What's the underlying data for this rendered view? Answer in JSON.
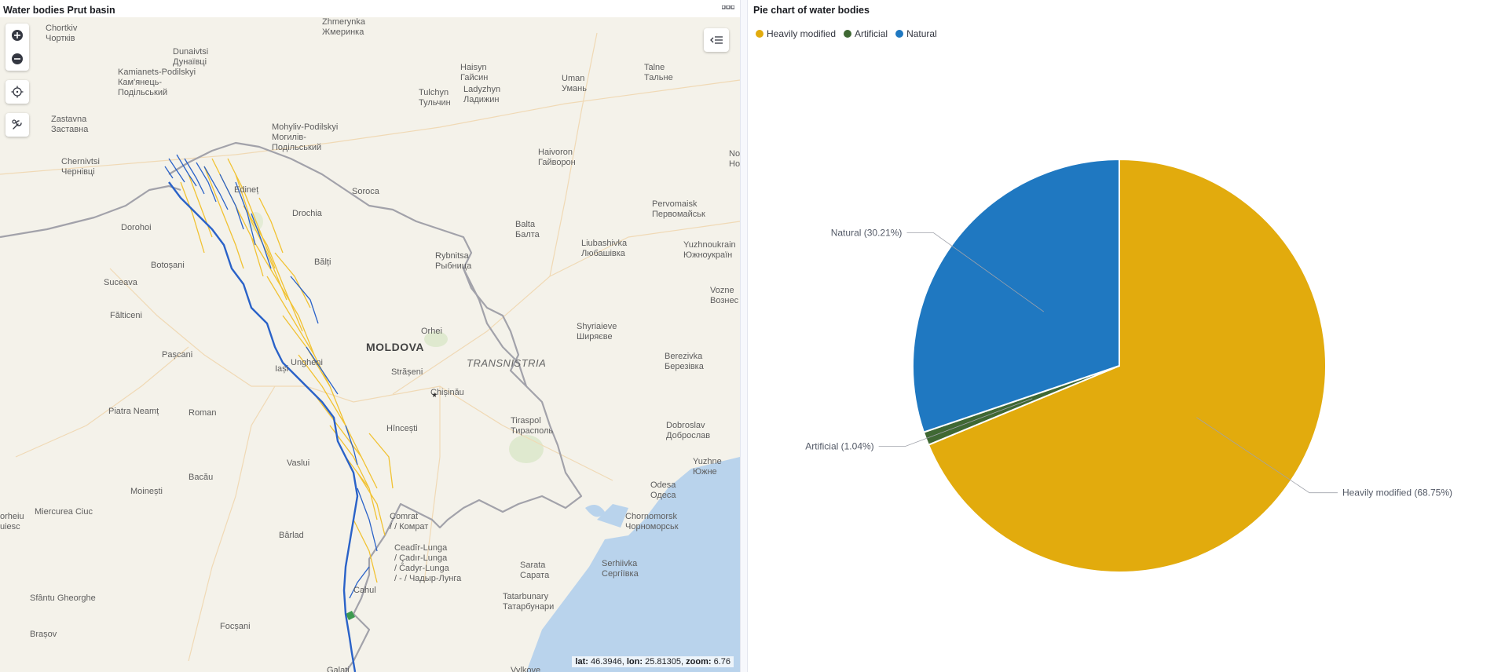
{
  "map_panel": {
    "title": "Water bodies Prut basin",
    "coords": {
      "lat_label": "lat:",
      "lat": "46.3946",
      "lon_label": "lon:",
      "lon": "25.81305",
      "zoom_label": "zoom:",
      "zoom": "6.76"
    },
    "places": [
      {
        "text": "Chortkiv\nЧортків"
      },
      {
        "text": "Zhmerynka\nЖмеринка"
      },
      {
        "text": "Dunaivtsi\nДунаївці"
      },
      {
        "text": "Kamianets-Podilskyi\nКам'янець-\nПодільський"
      },
      {
        "text": "Zastavna\nЗаставна"
      },
      {
        "text": "Mohyliv-Podilskyi\nМогилів-\nПодільський"
      },
      {
        "text": "Haisyn\nГайсин"
      },
      {
        "text": "Talne\nТальне"
      },
      {
        "text": "Uman\nУмань"
      },
      {
        "text": "Tulchyn\nТульчин"
      },
      {
        "text": "Ladyzhyn\nЛадижин"
      },
      {
        "text": "Chernivtsi\nЧернівці"
      },
      {
        "text": "Haivoron\nГайворон"
      },
      {
        "text": "No\nHo"
      },
      {
        "text": "Edineț"
      },
      {
        "text": "Soroca"
      },
      {
        "text": "Pervomaisk\nПервомайськ"
      },
      {
        "text": "Dorohoi"
      },
      {
        "text": "Drochia"
      },
      {
        "text": "Balta\nБалта"
      },
      {
        "text": "Liubashivka\nЛюбашівка"
      },
      {
        "text": "Yuzhnoukrain\nЮжноукраїн"
      },
      {
        "text": "Botoșani"
      },
      {
        "text": "Bălți"
      },
      {
        "text": "Rybnitsa\nРыбница"
      },
      {
        "text": "Suceava"
      },
      {
        "text": "Vozne\nВознес"
      },
      {
        "text": "Fălticeni"
      },
      {
        "text": "Shyriaieve\nШиряєве"
      },
      {
        "text": "Orhei"
      },
      {
        "text": "Pașcani"
      },
      {
        "text": "Ungheni"
      },
      {
        "text": "Berezivka\nБерезівка"
      },
      {
        "text": "Iași"
      },
      {
        "text": "Strășeni"
      },
      {
        "text": "Chișinău"
      },
      {
        "text": "Piatra Neamț"
      },
      {
        "text": "Roman"
      },
      {
        "text": "Tiraspol\nТирасполь"
      },
      {
        "text": "Hîncești"
      },
      {
        "text": "Dobroslav\nДоброслав"
      },
      {
        "text": "Yuzhne\nЮжне"
      },
      {
        "text": "Vaslui"
      },
      {
        "text": "Bacău"
      },
      {
        "text": "Odesa\nОдеса"
      },
      {
        "text": "Moinești"
      },
      {
        "text": "Comrat\n/ / Комрат"
      },
      {
        "text": "Chornomorsk\nЧорноморськ"
      },
      {
        "text": "Miercurea Ciuc"
      },
      {
        "text": "orheiu\nuiesc"
      },
      {
        "text": "Bârlad"
      },
      {
        "text": "Ceadîr-Lunga\n/ Çadır-Lunga\n/ Čadyr-Lunga\n/ - / Чадыр-Лунга"
      },
      {
        "text": "Sarata\nСарата"
      },
      {
        "text": "Serhiivka\nСергіївка"
      },
      {
        "text": "Cahul"
      },
      {
        "text": "Sfântu Gheorghe"
      },
      {
        "text": "Tatarbunary\nТатарбунари"
      },
      {
        "text": "Focșani"
      },
      {
        "text": "Brașov"
      },
      {
        "text": "Galați"
      },
      {
        "text": "Vylkove"
      }
    ],
    "country_label": "MOLDOVA",
    "region_label": "TRANSNISTRIA",
    "colors": {
      "land": "#f4f2ea",
      "sea": "#b9d3ec",
      "border": "#9a9aa2",
      "natural": "#2a62c8",
      "heavily_modified": "#f1c232",
      "artificial": "#3d9a50"
    }
  },
  "chart_panel": {
    "title": "Pie chart of water bodies",
    "legend": [
      {
        "label": "Heavily modified",
        "color": "#e2ab0d"
      },
      {
        "label": "Artificial",
        "color": "#3f6833"
      },
      {
        "label": "Natural",
        "color": "#1f78c1"
      }
    ]
  },
  "chart_data": {
    "type": "pie",
    "title": "Pie chart of water bodies",
    "slices": [
      {
        "label": "Heavily modified",
        "value": 68.75,
        "color": "#e2ab0d",
        "data_label": "Heavily modified (68.75%)"
      },
      {
        "label": "Artificial",
        "value": 1.04,
        "color": "#3f6833",
        "data_label": "Artificial (1.04%)"
      },
      {
        "label": "Natural",
        "value": 30.21,
        "color": "#1f78c1",
        "data_label": "Natural (30.21%)"
      }
    ],
    "legend_position": "top-left"
  }
}
